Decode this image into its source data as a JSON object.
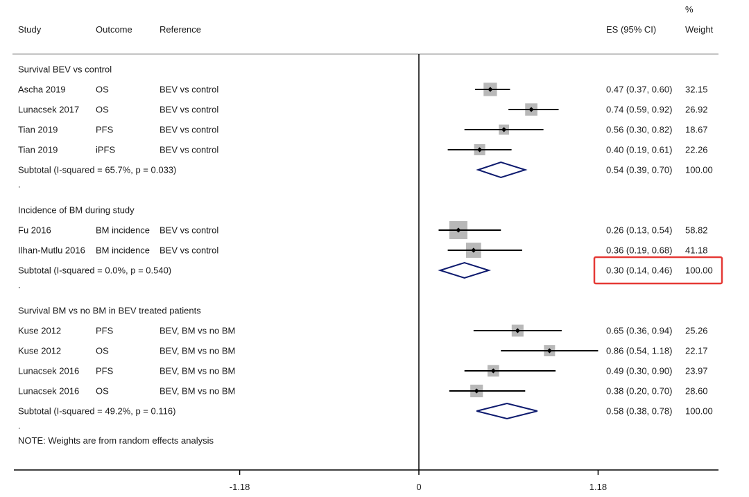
{
  "chart_data": {
    "type": "forest",
    "columns": {
      "study": "Study",
      "outcome": "Outcome",
      "reference": "Reference",
      "es": "ES (95% CI)",
      "weight_top": "%",
      "weight": "Weight"
    },
    "groups": [
      {
        "title": "Survival BEV vs control",
        "studies": [
          {
            "study": "Ascha 2019",
            "outcome": "OS",
            "reference": "BEV vs control",
            "es": 0.47,
            "lo": 0.37,
            "hi": 0.6,
            "es_label": "0.47 (0.37, 0.60)",
            "weight": "32.15",
            "w": 32.15
          },
          {
            "study": "Lunacsek 2017",
            "outcome": "OS",
            "reference": "BEV vs control",
            "es": 0.74,
            "lo": 0.59,
            "hi": 0.92,
            "es_label": "0.74 (0.59, 0.92)",
            "weight": "26.92",
            "w": 26.92
          },
          {
            "study": "Tian 2019",
            "outcome": "PFS",
            "reference": "BEV vs control",
            "es": 0.56,
            "lo": 0.3,
            "hi": 0.82,
            "es_label": "0.56 (0.30, 0.82)",
            "weight": "18.67",
            "w": 18.67
          },
          {
            "study": "Tian 2019",
            "outcome": "iPFS",
            "reference": "BEV vs control",
            "es": 0.4,
            "lo": 0.19,
            "hi": 0.61,
            "es_label": "0.40 (0.19, 0.61)",
            "weight": "22.26",
            "w": 22.26
          }
        ],
        "subtotal": {
          "label": "Subtotal  (I-squared = 65.7%, p = 0.033)",
          "es": 0.54,
          "lo": 0.39,
          "hi": 0.7,
          "es_label": "0.54 (0.39, 0.70)",
          "weight": "100.00"
        },
        "gap": "."
      },
      {
        "title": "Incidence of BM during study",
        "studies": [
          {
            "study": "Fu 2016",
            "outcome": "BM incidence",
            "reference": "BEV vs control",
            "es": 0.26,
            "lo": 0.13,
            "hi": 0.54,
            "es_label": "0.26 (0.13, 0.54)",
            "weight": "58.82",
            "w": 58.82
          },
          {
            "study": "Ilhan-Mutlu 2016",
            "outcome": "BM incidence",
            "reference": "BEV vs control",
            "es": 0.36,
            "lo": 0.19,
            "hi": 0.68,
            "es_label": "0.36 (0.19, 0.68)",
            "weight": "41.18",
            "w": 41.18
          }
        ],
        "subtotal": {
          "label": "Subtotal  (I-squared = 0.0%, p = 0.540)",
          "es": 0.3,
          "lo": 0.14,
          "hi": 0.46,
          "es_label": "0.30 (0.14, 0.46)",
          "weight": "100.00",
          "highlighted": true
        },
        "gap": "."
      },
      {
        "title": "Survival BM vs no BM in BEV treated patients",
        "studies": [
          {
            "study": "Kuse 2012",
            "outcome": "PFS",
            "reference": "BEV, BM vs no BM",
            "es": 0.65,
            "lo": 0.36,
            "hi": 0.94,
            "es_label": "0.65 (0.36, 0.94)",
            "weight": "25.26",
            "w": 25.26
          },
          {
            "study": "Kuse 2012",
            "outcome": "OS",
            "reference": "BEV, BM vs no BM",
            "es": 0.86,
            "lo": 0.54,
            "hi": 1.18,
            "es_label": "0.86 (0.54, 1.18)",
            "weight": "22.17",
            "w": 22.17
          },
          {
            "study": "Lunacsek 2016",
            "outcome": "PFS",
            "reference": "BEV, BM vs no BM",
            "es": 0.49,
            "lo": 0.3,
            "hi": 0.9,
            "es_label": "0.49 (0.30, 0.90)",
            "weight": "23.97",
            "w": 23.97
          },
          {
            "study": "Lunacsek 2016",
            "outcome": "OS",
            "reference": "BEV, BM vs no BM",
            "es": 0.38,
            "lo": 0.2,
            "hi": 0.7,
            "es_label": "0.38 (0.20, 0.70)",
            "weight": "28.60",
            "w": 28.6
          }
        ],
        "subtotal": {
          "label": "Subtotal  (I-squared = 49.2%, p = 0.116)",
          "es": 0.58,
          "lo": 0.38,
          "hi": 0.78,
          "es_label": "0.58 (0.38, 0.78)",
          "weight": "100.00"
        },
        "gap": "."
      }
    ],
    "note": "NOTE: Weights are from random effects analysis",
    "x_ticks": [
      {
        "value": -1.18,
        "label": "-1.18"
      },
      {
        "value": 0,
        "label": "0"
      },
      {
        "value": 1.18,
        "label": "1.18"
      }
    ],
    "xlim": [
      -2.66,
      1.96
    ],
    "null_line": 0
  },
  "colors": {
    "text": "#1a1a1a",
    "line": "#000000",
    "weight_box": "#b8b8b8",
    "diamond": "#0d1a6e",
    "highlight": "#e53935",
    "header_rule": "#b0b0b0"
  }
}
